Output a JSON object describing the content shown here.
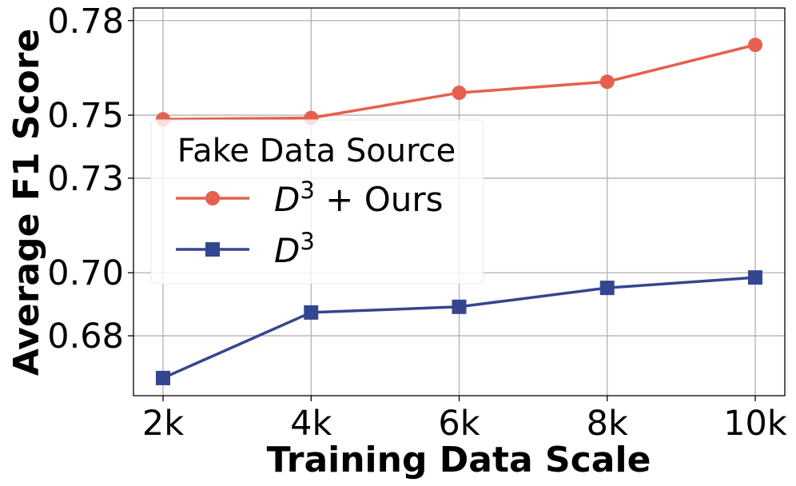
{
  "chart_data": {
    "type": "line",
    "xlabel": "Training Data Scale",
    "ylabel": "Average F1 Score",
    "categories": [
      "2k",
      "4k",
      "6k",
      "8k",
      "10k"
    ],
    "ylim": [
      0.661,
      0.784
    ],
    "yticks": [
      0.68,
      0.7,
      0.73,
      0.75,
      0.78
    ],
    "ytick_labels": [
      "0.68",
      "0.70",
      "0.73",
      "0.75",
      "0.78"
    ],
    "grid": true,
    "legend": {
      "title": "Fake Data Source",
      "placement": "center-left"
    },
    "series": [
      {
        "name_main": "D",
        "name_sup": "3",
        "name_suffix": " + Ours",
        "color": "#e5604f",
        "marker": "circle",
        "values": [
          0.7487,
          0.7491,
          0.7571,
          0.7606,
          0.7723
        ]
      },
      {
        "name_main": "D",
        "name_sup": "3",
        "name_suffix": "",
        "color": "#34468f",
        "marker": "square",
        "values": [
          0.6666,
          0.6874,
          0.6892,
          0.6952,
          0.6985
        ]
      }
    ]
  }
}
